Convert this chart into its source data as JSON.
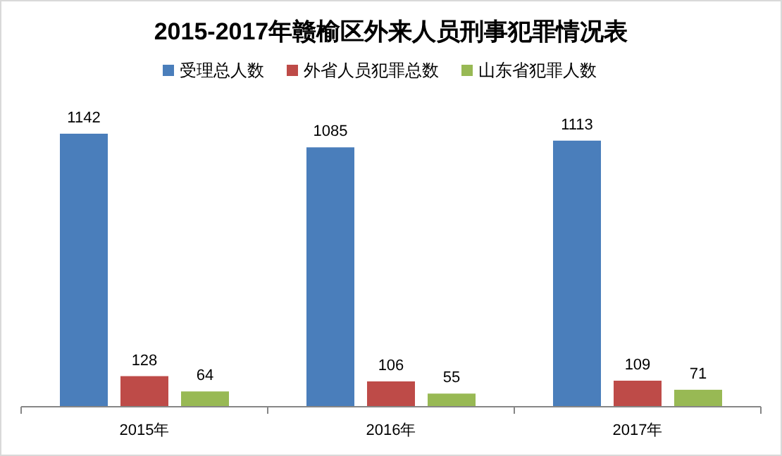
{
  "chart_data": {
    "type": "bar",
    "title": "2015-2017年赣榆区外来人员刑事犯罪情况表",
    "categories": [
      "2015年",
      "2016年",
      "2017年"
    ],
    "series": [
      {
        "name": "受理总人数",
        "color": "#4a7ebb",
        "values": [
          1142,
          1085,
          1113
        ]
      },
      {
        "name": "外省人员犯罪总数",
        "color": "#be4b48",
        "values": [
          128,
          106,
          109
        ]
      },
      {
        "name": "山东省犯罪人数",
        "color": "#98b954",
        "values": [
          64,
          55,
          71
        ]
      }
    ],
    "data_labels": true,
    "legend": "top",
    "grid": false
  }
}
